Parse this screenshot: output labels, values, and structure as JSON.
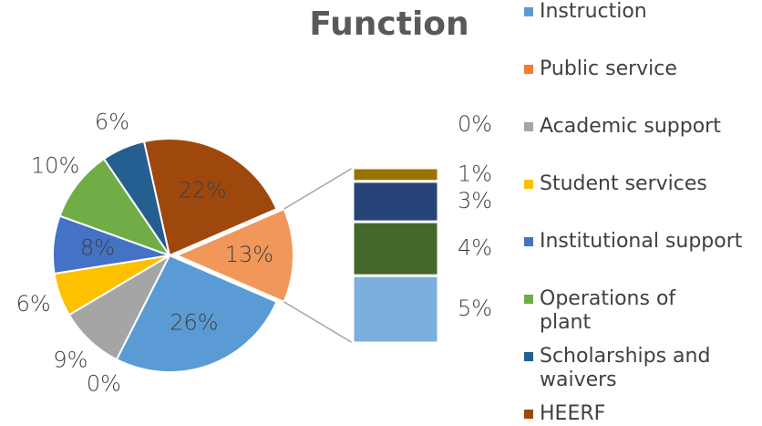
{
  "chart_data": {
    "type": "bar-of-pie",
    "title": "Function",
    "series": [
      {
        "name": "Instruction",
        "color": "#5b9bd5",
        "value": 26,
        "value_label": "26%"
      },
      {
        "name": "Public service",
        "color": "#ed7d31",
        "value": 0,
        "value_label": "0%"
      },
      {
        "name": "Academic support",
        "color": "#a5a5a5",
        "value": 9,
        "value_label": "9%"
      },
      {
        "name": "Student services",
        "color": "#ffc000",
        "value": 6,
        "value_label": "6%"
      },
      {
        "name": "Institutional support",
        "color": "#4472c4",
        "value": 8,
        "value_label": "8%"
      },
      {
        "name": "Operations of plant",
        "color": "#70ad47",
        "value": 10,
        "value_label": "10%"
      },
      {
        "name": "Scholarships and waivers",
        "color": "#255e91",
        "value": 6,
        "value_label": "6%"
      },
      {
        "name": "HEERF",
        "color": "#9e480e",
        "value": 22,
        "value_label": "22%"
      }
    ],
    "other": {
      "color": "#f1975a",
      "value": 13,
      "value_label": "13%"
    },
    "bar_segments": [
      {
        "color": "#7cafdd",
        "value": 5,
        "value_label": "5%"
      },
      {
        "color": "#43682b",
        "value": 4,
        "value_label": "4%"
      },
      {
        "color": "#264478",
        "value": 3,
        "value_label": "3%"
      },
      {
        "color": "#997300",
        "value": 1,
        "value_label": "1%"
      },
      {
        "color": "#636363",
        "value": 0,
        "value_label": "0%"
      }
    ]
  }
}
